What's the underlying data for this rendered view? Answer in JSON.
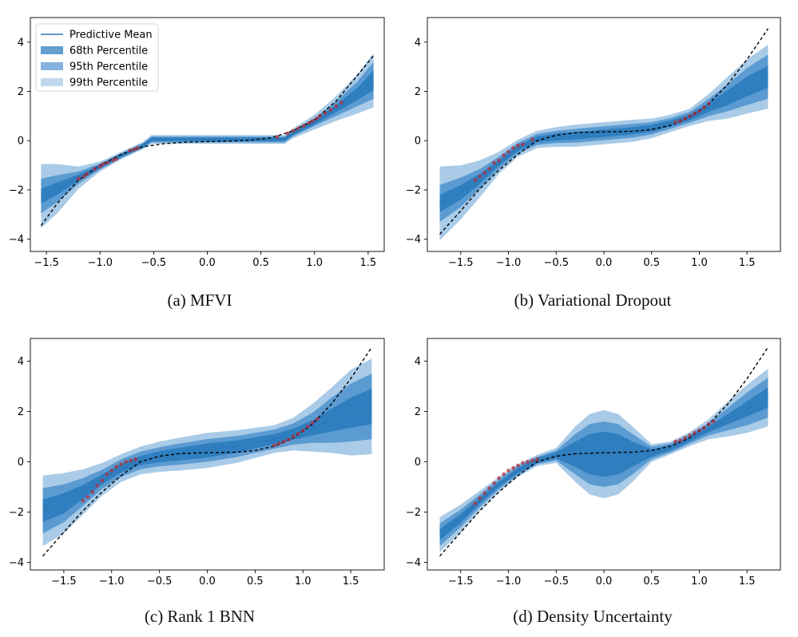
{
  "legend": {
    "entries": [
      "Predictive Mean",
      "68th Percentile",
      "95th Percentile",
      "99th Percentile"
    ],
    "placement": "upper-left of panel (a)"
  },
  "colors": {
    "mean": "#2e78b7",
    "band68": "#2f7fc0",
    "band95": "#5b9bd1",
    "band99": "#a9cbe7",
    "true_fn": "#000000",
    "data_points": "#b03040"
  },
  "chart_data": [
    {
      "type": "line",
      "caption": "(a) MFVI",
      "xlim": [
        -1.65,
        1.65
      ],
      "ylim": [
        -4.5,
        5.0
      ],
      "xticks": [
        -1.5,
        -1.0,
        -0.5,
        0.0,
        0.5,
        1.0,
        1.5
      ],
      "xtick_labels": [
        "−1.5",
        "−1.0",
        "−0.5",
        "0.0",
        "0.5",
        "1.0",
        "1.5"
      ],
      "yticks": [
        -4,
        -2,
        0,
        2,
        4
      ],
      "ytick_labels": [
        "−4",
        "−2",
        "0",
        "2",
        "4"
      ],
      "x": [
        -1.55,
        -1.4,
        -1.2,
        -1.0,
        -0.8,
        -0.6,
        -0.52,
        -0.3,
        0.0,
        0.3,
        0.6,
        0.72,
        0.8,
        1.0,
        1.2,
        1.4,
        1.55
      ],
      "mean": [
        -2.25,
        -1.95,
        -1.5,
        -1.05,
        -0.6,
        -0.2,
        0.05,
        0.05,
        0.05,
        0.05,
        0.05,
        0.05,
        0.3,
        0.75,
        1.3,
        1.9,
        2.45
      ],
      "w68": [
        0.3,
        0.25,
        0.12,
        0.08,
        0.07,
        0.07,
        0.07,
        0.07,
        0.07,
        0.07,
        0.07,
        0.07,
        0.08,
        0.1,
        0.15,
        0.25,
        0.4
      ],
      "w95": [
        0.7,
        0.55,
        0.25,
        0.12,
        0.1,
        0.1,
        0.12,
        0.12,
        0.12,
        0.12,
        0.12,
        0.12,
        0.12,
        0.15,
        0.3,
        0.5,
        0.75
      ],
      "w99": [
        1.3,
        1.0,
        0.45,
        0.2,
        0.15,
        0.15,
        0.18,
        0.18,
        0.18,
        0.18,
        0.18,
        0.18,
        0.2,
        0.3,
        0.5,
        0.8,
        1.1
      ],
      "true_x": [
        -1.55,
        -1.4,
        -1.2,
        -1.0,
        -0.8,
        -0.6,
        -0.4,
        -0.2,
        0.0,
        0.2,
        0.4,
        0.6,
        0.8,
        1.0,
        1.2,
        1.4,
        1.55
      ],
      "true_y": [
        -3.45,
        -2.55,
        -1.6,
        -1.0,
        -0.55,
        -0.25,
        -0.12,
        -0.06,
        -0.04,
        -0.02,
        0.02,
        0.12,
        0.4,
        0.85,
        1.6,
        2.65,
        3.45
      ],
      "points_x": [
        -1.2,
        -1.15,
        -1.12,
        -1.05,
        -1.0,
        -0.97,
        -0.93,
        -0.88,
        -0.85,
        -0.72,
        -0.68,
        -0.65,
        0.65,
        0.75,
        0.8,
        0.85,
        0.9,
        0.95,
        0.98,
        1.02,
        1.05,
        1.1,
        1.15,
        1.2,
        1.25
      ],
      "points_y": [
        -1.55,
        -1.45,
        -1.35,
        -1.15,
        -1.05,
        -0.95,
        -0.9,
        -0.8,
        -0.75,
        -0.4,
        -0.35,
        -0.3,
        0.15,
        0.3,
        0.4,
        0.5,
        0.6,
        0.72,
        0.8,
        0.9,
        1.0,
        1.12,
        1.25,
        1.4,
        1.55
      ]
    },
    {
      "type": "line",
      "caption": "(b) Variational Dropout",
      "xlim": [
        -1.85,
        1.85
      ],
      "ylim": [
        -4.5,
        5.0
      ],
      "xticks": [
        -1.5,
        -1.0,
        -0.5,
        0.0,
        0.5,
        1.0,
        1.5
      ],
      "xtick_labels": [
        "−1.5",
        "−1.0",
        "−0.5",
        "0.0",
        "0.5",
        "1.0",
        "1.5"
      ],
      "yticks": [
        -4,
        -2,
        0,
        2,
        4
      ],
      "ytick_labels": [
        "−4",
        "−2",
        "0",
        "2",
        "4"
      ],
      "x": [
        -1.72,
        -1.5,
        -1.3,
        -1.1,
        -0.9,
        -0.7,
        -0.5,
        -0.3,
        0.0,
        0.3,
        0.5,
        0.7,
        0.9,
        1.1,
        1.3,
        1.5,
        1.72
      ],
      "mean": [
        -2.55,
        -2.1,
        -1.55,
        -0.9,
        -0.3,
        0.05,
        0.15,
        0.2,
        0.3,
        0.4,
        0.5,
        0.7,
        0.95,
        1.35,
        1.75,
        2.2,
        2.6
      ],
      "w68": [
        0.35,
        0.3,
        0.2,
        0.12,
        0.12,
        0.12,
        0.15,
        0.15,
        0.15,
        0.15,
        0.15,
        0.12,
        0.12,
        0.18,
        0.3,
        0.4,
        0.45
      ],
      "w95": [
        0.75,
        0.6,
        0.4,
        0.25,
        0.22,
        0.22,
        0.25,
        0.28,
        0.28,
        0.28,
        0.25,
        0.22,
        0.22,
        0.35,
        0.55,
        0.75,
        0.9
      ],
      "w99": [
        1.5,
        1.1,
        0.75,
        0.45,
        0.35,
        0.35,
        0.4,
        0.45,
        0.45,
        0.45,
        0.4,
        0.35,
        0.35,
        0.55,
        0.85,
        1.1,
        1.3
      ],
      "true_x": [
        -1.72,
        -1.5,
        -1.3,
        -1.1,
        -0.9,
        -0.7,
        -0.5,
        -0.3,
        0.0,
        0.3,
        0.5,
        0.7,
        0.9,
        1.1,
        1.3,
        1.5,
        1.72
      ],
      "true_y": [
        -3.8,
        -2.85,
        -1.95,
        -1.2,
        -0.55,
        0.0,
        0.22,
        0.32,
        0.36,
        0.38,
        0.45,
        0.62,
        0.95,
        1.5,
        2.3,
        3.3,
        4.55
      ],
      "points_x": [
        -1.35,
        -1.3,
        -1.25,
        -1.2,
        -1.15,
        -1.1,
        -1.05,
        -1.0,
        -0.95,
        -0.9,
        -0.85,
        -0.75,
        0.75,
        0.8,
        0.85,
        0.9,
        0.95,
        1.0,
        1.05,
        1.1
      ],
      "points_y": [
        -1.6,
        -1.45,
        -1.3,
        -1.15,
        -0.9,
        -0.8,
        -0.6,
        -0.45,
        -0.3,
        -0.2,
        -0.15,
        0.05,
        0.75,
        0.8,
        0.9,
        1.0,
        1.1,
        1.2,
        1.35,
        1.5
      ]
    },
    {
      "type": "line",
      "caption": "(c) Rank 1 BNN",
      "xlim": [
        -1.85,
        1.85
      ],
      "ylim": [
        -4.3,
        4.9
      ],
      "xticks": [
        -1.5,
        -1.0,
        -0.5,
        0.0,
        0.5,
        1.0,
        1.5
      ],
      "xtick_labels": [
        "−1.5",
        "−1.0",
        "−0.5",
        "0.0",
        "0.5",
        "1.0",
        "1.5"
      ],
      "yticks": [
        -4,
        -2,
        0,
        2,
        4
      ],
      "ytick_labels": [
        "−4",
        "−2",
        "0",
        "2",
        "4"
      ],
      "x": [
        -1.72,
        -1.5,
        -1.3,
        -1.1,
        -0.9,
        -0.7,
        -0.5,
        -0.3,
        0.0,
        0.3,
        0.5,
        0.7,
        0.9,
        1.1,
        1.3,
        1.5,
        1.72
      ],
      "mean": [
        -1.95,
        -1.65,
        -1.2,
        -0.7,
        -0.25,
        0.05,
        0.2,
        0.3,
        0.45,
        0.6,
        0.75,
        0.9,
        1.1,
        1.35,
        1.65,
        1.95,
        2.2
      ],
      "w68": [
        0.45,
        0.4,
        0.28,
        0.2,
        0.18,
        0.18,
        0.22,
        0.25,
        0.28,
        0.25,
        0.22,
        0.2,
        0.22,
        0.3,
        0.45,
        0.6,
        0.7
      ],
      "w95": [
        0.9,
        0.75,
        0.55,
        0.38,
        0.35,
        0.35,
        0.38,
        0.42,
        0.45,
        0.42,
        0.4,
        0.38,
        0.42,
        0.6,
        0.9,
        1.15,
        1.3
      ],
      "w99": [
        1.4,
        1.2,
        0.9,
        0.65,
        0.55,
        0.55,
        0.6,
        0.65,
        0.7,
        0.65,
        0.6,
        0.55,
        0.65,
        0.95,
        1.3,
        1.7,
        1.9
      ],
      "true_x": [
        -1.72,
        -1.5,
        -1.3,
        -1.1,
        -0.9,
        -0.7,
        -0.5,
        -0.3,
        0.0,
        0.3,
        0.5,
        0.7,
        0.9,
        1.1,
        1.3,
        1.5,
        1.72
      ],
      "true_y": [
        -3.75,
        -2.8,
        -1.95,
        -1.2,
        -0.55,
        0.0,
        0.22,
        0.32,
        0.36,
        0.38,
        0.45,
        0.62,
        0.95,
        1.5,
        2.3,
        3.3,
        4.55
      ],
      "points_x": [
        -1.3,
        -1.25,
        -1.2,
        -1.15,
        -1.1,
        -1.05,
        -1.0,
        -0.95,
        -0.9,
        -0.85,
        -0.8,
        -0.75,
        0.7,
        0.75,
        0.8,
        0.85,
        0.9,
        0.95,
        1.0,
        1.05,
        1.1,
        1.15
      ],
      "points_y": [
        -1.55,
        -1.4,
        -1.2,
        -0.95,
        -0.75,
        -0.5,
        -0.35,
        -0.2,
        -0.1,
        0.0,
        0.05,
        0.1,
        0.65,
        0.72,
        0.8,
        0.88,
        1.0,
        1.12,
        1.25,
        1.4,
        1.55,
        1.7
      ]
    },
    {
      "type": "line",
      "caption": "(d) Density Uncertainty",
      "xlim": [
        -1.85,
        1.85
      ],
      "ylim": [
        -4.3,
        4.9
      ],
      "xticks": [
        -1.5,
        -1.0,
        -0.5,
        0.0,
        0.5,
        1.0,
        1.5
      ],
      "xtick_labels": [
        "−1.5",
        "−1.0",
        "−0.5",
        "0.0",
        "0.5",
        "1.0",
        "1.5"
      ],
      "yticks": [
        -4,
        -2,
        0,
        2,
        4
      ],
      "ytick_labels": [
        "−4",
        "−2",
        "0",
        "2",
        "4"
      ],
      "x": [
        -1.72,
        -1.5,
        -1.3,
        -1.1,
        -0.9,
        -0.7,
        -0.5,
        -0.3,
        -0.15,
        0.0,
        0.15,
        0.3,
        0.5,
        0.7,
        0.9,
        1.1,
        1.3,
        1.5,
        1.72
      ],
      "mean": [
        -2.9,
        -2.25,
        -1.55,
        -0.9,
        -0.35,
        0.05,
        0.25,
        0.3,
        0.3,
        0.3,
        0.3,
        0.3,
        0.35,
        0.55,
        0.9,
        1.3,
        1.7,
        2.1,
        2.55
      ],
      "w68": [
        0.22,
        0.18,
        0.12,
        0.1,
        0.1,
        0.1,
        0.12,
        0.5,
        0.8,
        0.9,
        0.8,
        0.5,
        0.15,
        0.1,
        0.1,
        0.12,
        0.2,
        0.3,
        0.4
      ],
      "w95": [
        0.45,
        0.35,
        0.25,
        0.2,
        0.18,
        0.15,
        0.2,
        0.8,
        1.2,
        1.3,
        1.2,
        0.8,
        0.25,
        0.18,
        0.18,
        0.25,
        0.45,
        0.65,
        0.8
      ],
      "w99": [
        0.7,
        0.55,
        0.4,
        0.3,
        0.25,
        0.22,
        0.3,
        1.1,
        1.6,
        1.75,
        1.6,
        1.1,
        0.35,
        0.25,
        0.28,
        0.4,
        0.7,
        0.95,
        1.15
      ],
      "true_x": [
        -1.72,
        -1.5,
        -1.3,
        -1.1,
        -0.9,
        -0.7,
        -0.5,
        -0.3,
        0.0,
        0.3,
        0.5,
        0.7,
        0.9,
        1.1,
        1.3,
        1.5,
        1.72
      ],
      "true_y": [
        -3.75,
        -2.8,
        -1.95,
        -1.2,
        -0.55,
        0.0,
        0.22,
        0.32,
        0.36,
        0.38,
        0.45,
        0.62,
        0.95,
        1.5,
        2.3,
        3.3,
        4.55
      ],
      "points_x": [
        -1.35,
        -1.3,
        -1.25,
        -1.2,
        -1.15,
        -1.1,
        -1.05,
        -1.0,
        -0.95,
        -0.9,
        -0.85,
        -0.8,
        -0.75,
        -0.7,
        0.75,
        0.8,
        0.85,
        0.9,
        0.95,
        1.0,
        1.05,
        1.1,
        1.15
      ],
      "points_y": [
        -1.65,
        -1.45,
        -1.25,
        -1.05,
        -0.85,
        -0.65,
        -0.5,
        -0.35,
        -0.25,
        -0.15,
        -0.05,
        0.0,
        0.05,
        0.1,
        0.8,
        0.85,
        0.95,
        1.05,
        1.15,
        1.25,
        1.35,
        1.5,
        1.6
      ]
    }
  ]
}
